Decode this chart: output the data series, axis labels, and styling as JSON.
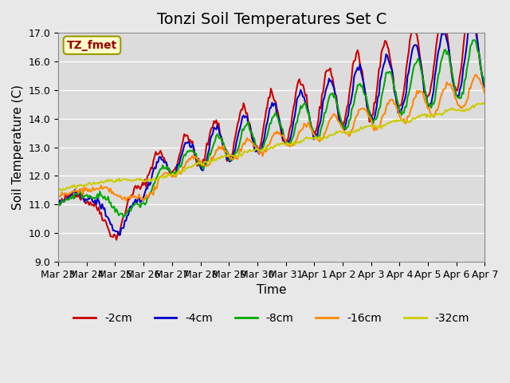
{
  "title": "Tonzi Soil Temperatures Set C",
  "xlabel": "Time",
  "ylabel": "Soil Temperature (C)",
  "ylim": [
    9.0,
    17.0
  ],
  "yticks": [
    9.0,
    10.0,
    11.0,
    12.0,
    13.0,
    14.0,
    15.0,
    16.0,
    17.0
  ],
  "xtick_labels": [
    "Mar 23",
    "Mar 24",
    "Mar 25",
    "Mar 26",
    "Mar 27",
    "Mar 28",
    "Mar 29",
    "Mar 30",
    "Mar 31",
    "Apr 1",
    "Apr 2",
    "Apr 3",
    "Apr 4",
    "Apr 5",
    "Apr 6",
    "Apr 7"
  ],
  "series_colors": [
    "#cc0000",
    "#0000cc",
    "#00aa00",
    "#ff8800",
    "#cccc00"
  ],
  "series_labels": [
    "-2cm",
    "-4cm",
    "-8cm",
    "-16cm",
    "-32cm"
  ],
  "legend_label": "TZ_fmet",
  "background_color": "#e8e8e8",
  "plot_bg_color": "#dcdcdc",
  "grid_color": "#ffffff",
  "title_fontsize": 14,
  "axis_fontsize": 11,
  "tick_fontsize": 9,
  "legend_fontsize": 10
}
